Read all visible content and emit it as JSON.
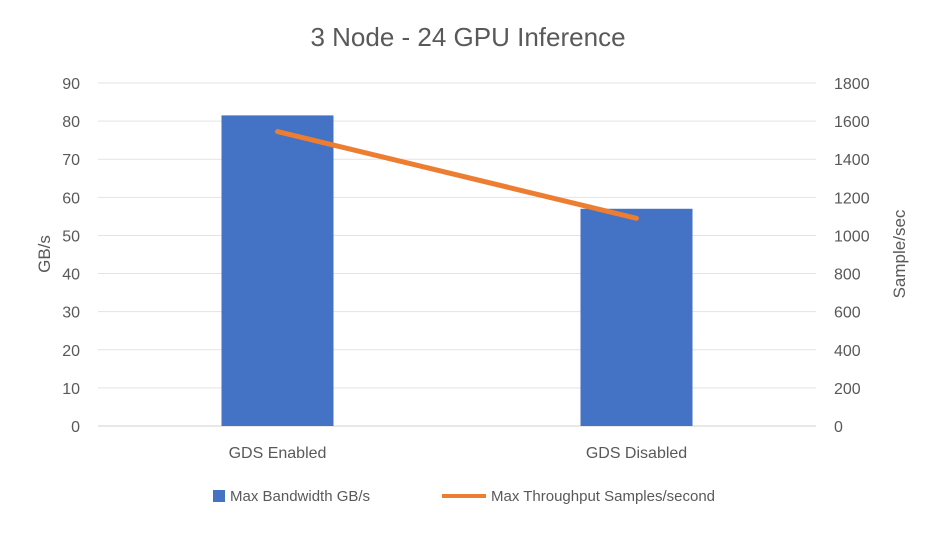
{
  "chart_data": {
    "type": "bar+line",
    "title": "3 Node - 24 GPU Inference",
    "categories": [
      "GDS Enabled",
      "GDS Disabled"
    ],
    "series": [
      {
        "name": "Max Bandwidth GB/s",
        "type": "bar",
        "axis": "left",
        "values": [
          81.5,
          57.0
        ],
        "color": "#4472C4"
      },
      {
        "name": "Max Throughput Samples/second",
        "type": "line",
        "axis": "right",
        "values": [
          1545,
          1090
        ],
        "color": "#ED7D31"
      }
    ],
    "ylabel": "GB/s",
    "y2label": "Sample/sec",
    "ylim": [
      0,
      90
    ],
    "y2lim": [
      0,
      1800
    ],
    "yticks": [
      "0",
      "10",
      "20",
      "30",
      "40",
      "50",
      "60",
      "70",
      "80",
      "90"
    ],
    "y2ticks": [
      "0",
      "200",
      "400",
      "600",
      "800",
      "1000",
      "1200",
      "1400",
      "1600",
      "1800"
    ],
    "grid": true,
    "legend": "bottom"
  }
}
